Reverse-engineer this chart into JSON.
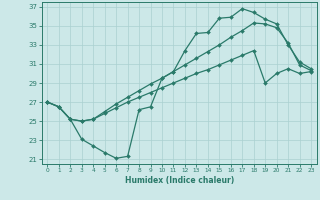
{
  "xlabel": "Humidex (Indice chaleur)",
  "ylabel": "",
  "bg_color": "#cce8e8",
  "grid_color": "#aad0d0",
  "line_color": "#2a7a6a",
  "xlim": [
    -0.5,
    23.5
  ],
  "ylim": [
    20.5,
    37.5
  ],
  "xticks": [
    0,
    1,
    2,
    3,
    4,
    5,
    6,
    7,
    8,
    9,
    10,
    11,
    12,
    13,
    14,
    15,
    16,
    17,
    18,
    19,
    20,
    21,
    22,
    23
  ],
  "yticks": [
    21,
    23,
    25,
    27,
    29,
    31,
    33,
    35,
    37
  ],
  "line1_x": [
    0,
    1,
    2,
    3,
    4,
    5,
    6,
    7,
    8,
    9,
    10,
    11,
    12,
    13,
    14,
    15,
    16,
    17,
    18,
    19,
    20,
    21,
    22,
    23
  ],
  "line1_y": [
    27.0,
    26.5,
    25.2,
    23.1,
    22.4,
    21.7,
    21.1,
    21.3,
    26.2,
    26.5,
    29.5,
    30.2,
    32.4,
    34.2,
    34.3,
    35.8,
    35.9,
    36.8,
    36.4,
    35.7,
    35.2,
    33.0,
    31.2,
    30.5
  ],
  "line2_x": [
    0,
    1,
    2,
    3,
    4,
    5,
    6,
    7,
    8,
    9,
    10,
    11,
    12,
    13,
    14,
    15,
    16,
    17,
    18,
    19,
    20,
    21,
    22,
    23
  ],
  "line2_y": [
    27.0,
    26.5,
    25.2,
    25.0,
    25.2,
    26.0,
    26.8,
    27.5,
    28.2,
    28.9,
    29.5,
    30.2,
    30.9,
    31.6,
    32.3,
    33.0,
    33.8,
    34.5,
    35.3,
    35.2,
    34.8,
    33.2,
    30.9,
    30.3
  ],
  "line3_x": [
    0,
    1,
    2,
    3,
    4,
    5,
    6,
    7,
    8,
    9,
    10,
    11,
    12,
    13,
    14,
    15,
    16,
    17,
    18,
    19,
    20,
    21,
    22,
    23
  ],
  "line3_y": [
    27.0,
    26.5,
    25.2,
    25.0,
    25.2,
    25.8,
    26.4,
    27.0,
    27.5,
    28.0,
    28.5,
    29.0,
    29.5,
    30.0,
    30.4,
    30.9,
    31.4,
    31.9,
    32.4,
    29.0,
    30.0,
    30.5,
    30.0,
    30.2
  ]
}
